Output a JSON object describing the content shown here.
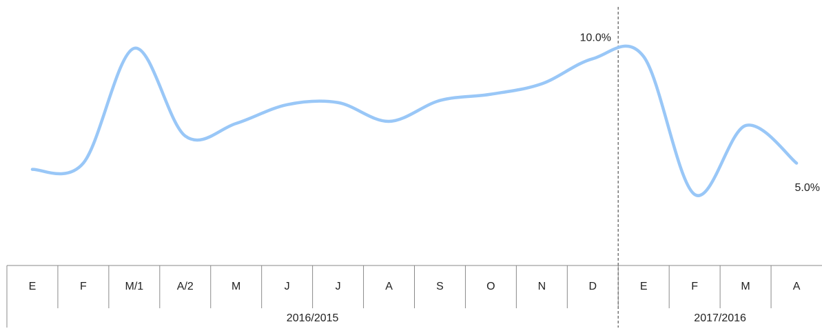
{
  "chart_data": {
    "type": "line",
    "categories": [
      "E",
      "F",
      "M/1",
      "A/2",
      "M",
      "J",
      "J",
      "A",
      "S",
      "O",
      "N",
      "D",
      "E",
      "F",
      "M",
      "A"
    ],
    "groups": [
      {
        "label": "2016/2015",
        "span": 12
      },
      {
        "label": "2017/2016",
        "span": 4
      }
    ],
    "series": [
      {
        "color": "#99c7f7",
        "values": [
          4.7,
          5.0,
          10.5,
          6.3,
          6.9,
          7.8,
          7.9,
          7.0,
          8.0,
          8.3,
          8.8,
          10.0,
          10.1,
          3.5,
          6.8,
          5.0
        ],
        "value_labels": [
          null,
          null,
          null,
          null,
          null,
          null,
          null,
          null,
          null,
          null,
          null,
          "10.0%",
          null,
          null,
          null,
          "5.0%"
        ]
      }
    ]
  }
}
